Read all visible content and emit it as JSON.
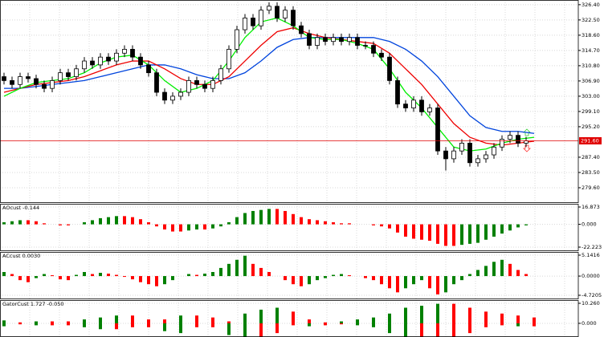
{
  "chart_data": [
    {
      "type": "candlestick",
      "open": [
        308,
        307,
        306,
        308,
        307.5,
        306,
        305,
        307,
        309,
        308,
        310,
        312,
        311,
        313,
        312,
        314,
        315,
        313,
        311,
        309,
        304,
        302,
        303,
        304,
        307,
        306,
        305,
        307,
        310,
        315,
        320,
        323,
        321,
        325,
        326,
        323,
        325,
        321,
        319,
        316,
        318,
        317,
        318,
        317,
        318,
        316,
        316,
        314,
        313,
        307,
        301,
        300,
        302,
        299,
        300,
        289,
        287,
        289,
        291,
        286,
        287,
        288,
        290,
        292,
        293,
        291
      ],
      "high": [
        309,
        308,
        309,
        309,
        308.5,
        307,
        308,
        310,
        310,
        311,
        313,
        313,
        314,
        314,
        315,
        316,
        316,
        314,
        312,
        310,
        305,
        304,
        305,
        308,
        308,
        307,
        308,
        311,
        316,
        321,
        324,
        324,
        326,
        327,
        327,
        326,
        326,
        322,
        320,
        319,
        319,
        319,
        319,
        319,
        319,
        317,
        317,
        315,
        314,
        308,
        302,
        303,
        303,
        301,
        301,
        290,
        290,
        292,
        292,
        288,
        289,
        291,
        293,
        294,
        294,
        292.6
      ],
      "low": [
        306,
        305,
        305,
        306.5,
        305,
        304,
        304,
        306,
        307,
        307,
        309,
        310,
        310,
        311,
        311,
        313,
        312,
        310,
        308,
        303,
        301,
        301,
        302,
        303,
        305,
        304,
        304,
        306,
        309,
        314,
        319,
        320,
        320,
        324,
        322,
        322,
        320,
        318,
        315,
        315,
        316,
        316,
        316,
        316,
        315,
        315,
        313,
        312,
        306,
        300,
        299,
        299,
        298,
        298,
        288,
        284,
        286,
        288,
        285,
        285,
        286,
        287,
        289,
        291,
        290,
        290
      ],
      "close": [
        307,
        306,
        308,
        307.5,
        306,
        305,
        307,
        309,
        308,
        310,
        312,
        311,
        313,
        312,
        314,
        315,
        313,
        311,
        309,
        304,
        302,
        303,
        304,
        307,
        306,
        305,
        307,
        310,
        315,
        320,
        323,
        321,
        325,
        326,
        323,
        325,
        321,
        319,
        316,
        318,
        317,
        318,
        317,
        318,
        316,
        316,
        314,
        313,
        307,
        301,
        300,
        302,
        299,
        300,
        289,
        287,
        289,
        291,
        286,
        287,
        288,
        290,
        292,
        293,
        291,
        291.6
      ],
      "up_color": "#ffffff",
      "down_color": "#000000",
      "wick_color": "#000000",
      "series": [
        {
          "color": "#0044dd",
          "values": [
            305,
            305,
            305.5,
            306,
            306.5,
            307,
            308,
            309,
            310,
            311,
            311,
            310,
            308.5,
            307.5,
            307.5,
            309,
            312,
            315.5,
            317.5,
            318,
            318,
            318,
            318,
            318,
            317,
            315,
            312,
            308,
            303,
            298,
            295,
            294,
            294,
            293.5
          ]
        },
        {
          "color": "#ee0000",
          "values": [
            304,
            305,
            306,
            306.5,
            307,
            308,
            309.5,
            311,
            312,
            312,
            310,
            307.5,
            306,
            306,
            308,
            312,
            316,
            319.5,
            320.5,
            319,
            318,
            317.5,
            317,
            316.5,
            314,
            310,
            306,
            301,
            296,
            292.5,
            291,
            290.5,
            291,
            291.5
          ]
        },
        {
          "color": "#00ee00",
          "values": [
            303,
            305,
            306.5,
            307,
            307.5,
            309,
            311.5,
            313,
            313.5,
            311,
            307,
            304,
            305,
            307,
            312,
            318,
            322,
            323,
            321,
            318,
            317.5,
            317.5,
            316.5,
            315,
            310,
            304,
            300,
            295,
            290,
            289,
            289.5,
            291,
            292,
            292.5
          ]
        }
      ],
      "current_price": {
        "value": 291.6,
        "label": "291.60"
      },
      "current_color": "#e00000",
      "ylim": [
        275.9,
        327.6
      ],
      "yticks": [
        {
          "value": 326.4,
          "label": "326.40"
        },
        {
          "value": 322.5,
          "label": "322.50"
        },
        {
          "value": 318.6,
          "label": "318.60"
        },
        {
          "value": 314.7,
          "label": "314.70"
        },
        {
          "value": 310.8,
          "label": "310.80"
        },
        {
          "value": 306.9,
          "label": "306.90"
        },
        {
          "value": 303,
          "label": "303.00"
        },
        {
          "value": 299.1,
          "label": "299.10"
        },
        {
          "value": 295.2,
          "label": "295.20"
        },
        {
          "value": 287.4,
          "label": "287.40"
        },
        {
          "value": 283.5,
          "label": "283.50"
        },
        {
          "value": 279.6,
          "label": "279.60"
        }
      ],
      "grid": true
    },
    {
      "type": "histogram",
      "title": "AOcust -0.144",
      "values": [
        2,
        3,
        4,
        4,
        3,
        1,
        0,
        -1,
        -1,
        0,
        2,
        4,
        6,
        7,
        8,
        8,
        7,
        5,
        2,
        -2,
        -5,
        -7,
        -7,
        -6,
        -5,
        -5,
        -4,
        -2,
        2,
        7,
        11,
        13,
        14,
        15,
        15,
        13,
        10,
        7,
        5,
        4,
        3,
        2,
        1,
        1,
        0,
        0,
        -1,
        -2,
        -4,
        -8,
        -12,
        -14,
        -15,
        -16,
        -19,
        -21,
        -21,
        -20,
        -19,
        -18,
        -15,
        -12,
        -9,
        -6,
        -3,
        -1
      ],
      "up_color": "#008000",
      "down_color": "#ff0000",
      "ylim": [
        -22.223,
        16.873
      ],
      "yticks": [
        16.873,
        {
          "value": 0,
          "label": "0.000"
        },
        -22.223
      ],
      "grid": true
    },
    {
      "type": "histogram",
      "title": "ACcust 0.0030",
      "values": [
        1,
        0.5,
        -1,
        -1.5,
        -0.5,
        0.5,
        0.2,
        -0.8,
        -1,
        0.3,
        1,
        0.5,
        0.8,
        0.6,
        0.3,
        -0.2,
        -0.8,
        -1.5,
        -2,
        -2.5,
        -2,
        -1,
        0,
        0.5,
        0.3,
        0.6,
        1,
        2,
        3,
        4,
        5,
        3,
        2,
        1,
        0,
        -1,
        -2,
        -2.5,
        -2,
        -1,
        -0.5,
        0.3,
        0.5,
        0.2,
        0,
        -0.5,
        -1,
        -2,
        -3,
        -4,
        -3,
        -2,
        -1,
        -3,
        -4.5,
        -4,
        -2,
        -1,
        0.5,
        1.5,
        2.5,
        3.5,
        4,
        3,
        1.5,
        0.5
      ],
      "up_color": "#008000",
      "down_color": "#ff0000",
      "ylim": [
        -4.7205,
        5.1416
      ],
      "yticks": [
        5.1416,
        {
          "value": 0,
          "label": "0.0000"
        },
        -4.7205
      ],
      "grid": true
    },
    {
      "type": "gator",
      "title": "GatorCust 1.727 -0.050",
      "upper": [
        1.5,
        0.5,
        1,
        1,
        1,
        2,
        3,
        4,
        4,
        2,
        2,
        4,
        4,
        3,
        1,
        5,
        7,
        8,
        6,
        2,
        0.5,
        1,
        2,
        3,
        5,
        8,
        9,
        10,
        10,
        8,
        6,
        5,
        4,
        3
      ],
      "lower": [
        -1.5,
        -0.5,
        -1,
        -1,
        -1,
        -2,
        -3,
        -3,
        -2,
        -2,
        -4,
        -5,
        -2,
        -2,
        -6,
        -7,
        -7,
        -5,
        -1,
        -1.5,
        -1,
        -0.5,
        -1,
        -2,
        -5,
        -7,
        -7,
        -7,
        -7,
        -5,
        -2,
        -1,
        -1.5,
        -1.5
      ],
      "up_color": "#008000",
      "down_color": "#ff0000",
      "ylim": [
        -7,
        10.26
      ],
      "yticks": [
        {
          "value": 10.26,
          "label": "10.260"
        },
        {
          "value": 0,
          "label": "0.000"
        }
      ],
      "grid": true
    }
  ]
}
